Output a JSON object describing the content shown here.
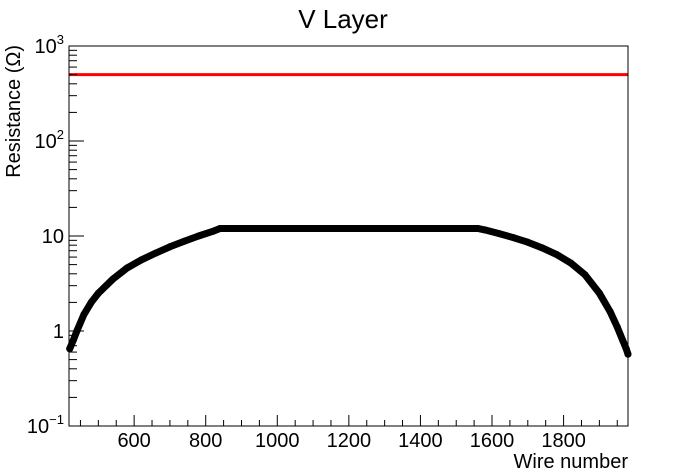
{
  "chart_data": {
    "type": "scatter",
    "title": "V Layer",
    "xlabel": "Wire number",
    "ylabel": "Resistance (Ω)",
    "xlim": [
      418,
      1980
    ],
    "ylim": [
      0.1,
      1000
    ],
    "yscale": "log",
    "grid": false,
    "x_ticks": [
      600,
      800,
      1000,
      1200,
      1400,
      1600,
      1800
    ],
    "y_ticks": [
      {
        "value": 0.1,
        "base": "10",
        "exp": "−1"
      },
      {
        "value": 1,
        "base": "1",
        "exp": ""
      },
      {
        "value": 10,
        "base": "10",
        "exp": ""
      },
      {
        "value": 100,
        "base": "10",
        "exp": "2"
      },
      {
        "value": 1000,
        "base": "10",
        "exp": "3"
      }
    ],
    "series": [
      {
        "color": "#000000",
        "x": [
          420,
          430,
          440,
          460,
          480,
          500,
          540,
          580,
          620,
          660,
          700,
          740,
          780,
          820,
          840,
          900,
          1000,
          1100,
          1200,
          1300,
          1400,
          1500,
          1560,
          1580,
          1620,
          1660,
          1700,
          1740,
          1780,
          1820,
          1860,
          1900,
          1930,
          1950,
          1965,
          1975,
          1980
        ],
        "y": [
          0.65,
          0.8,
          1.0,
          1.5,
          2.0,
          2.5,
          3.5,
          4.6,
          5.6,
          6.6,
          7.7,
          8.8,
          10.0,
          11.2,
          12.0,
          12.0,
          12.0,
          12.0,
          12.0,
          12.0,
          12.0,
          12.0,
          12.0,
          11.6,
          10.6,
          9.6,
          8.6,
          7.5,
          6.4,
          5.2,
          3.9,
          2.5,
          1.6,
          1.1,
          0.8,
          0.65,
          0.57
        ]
      },
      {
        "color": "#ff0000",
        "type": "line",
        "x": [
          418,
          1980
        ],
        "y": [
          500,
          500
        ]
      }
    ]
  }
}
